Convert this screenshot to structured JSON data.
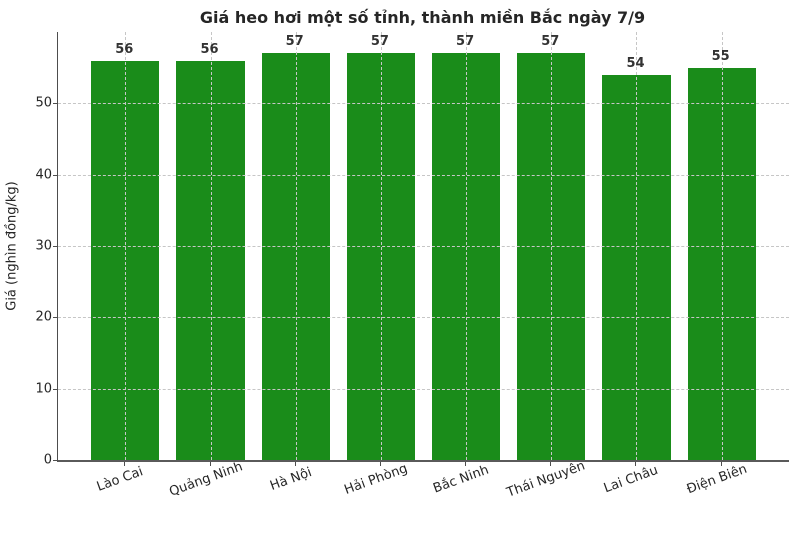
{
  "figure": {
    "background_color": "#ffffff",
    "text_color": "#262626"
  },
  "chart_data": {
    "type": "bar",
    "title": "Giá heo hơi một số tỉnh, thành miền Bắc ngày 7/9",
    "xlabel": "",
    "ylabel": "Giá (nghìn đồng/kg)",
    "categories": [
      "Lào Cai",
      "Quảng Ninh",
      "Hà Nội",
      "Hải Phòng",
      "Bắc Ninh",
      "Thái Nguyên",
      "Lai Châu",
      "Điện Biên"
    ],
    "values": [
      56,
      56,
      57,
      57,
      57,
      57,
      54,
      55
    ],
    "bar_value_labels": [
      "56",
      "56",
      "57",
      "57",
      "57",
      "57",
      "54",
      "55"
    ],
    "ylim": [
      0,
      60
    ],
    "yticks": [
      0,
      10,
      20,
      30,
      40,
      50
    ],
    "bar_color": "#1a8c1a",
    "grid": true,
    "grid_line_style": "dashed",
    "grid_color": "#c6c6c6",
    "legend_visible": false,
    "xtick_rotation_deg": 20
  }
}
